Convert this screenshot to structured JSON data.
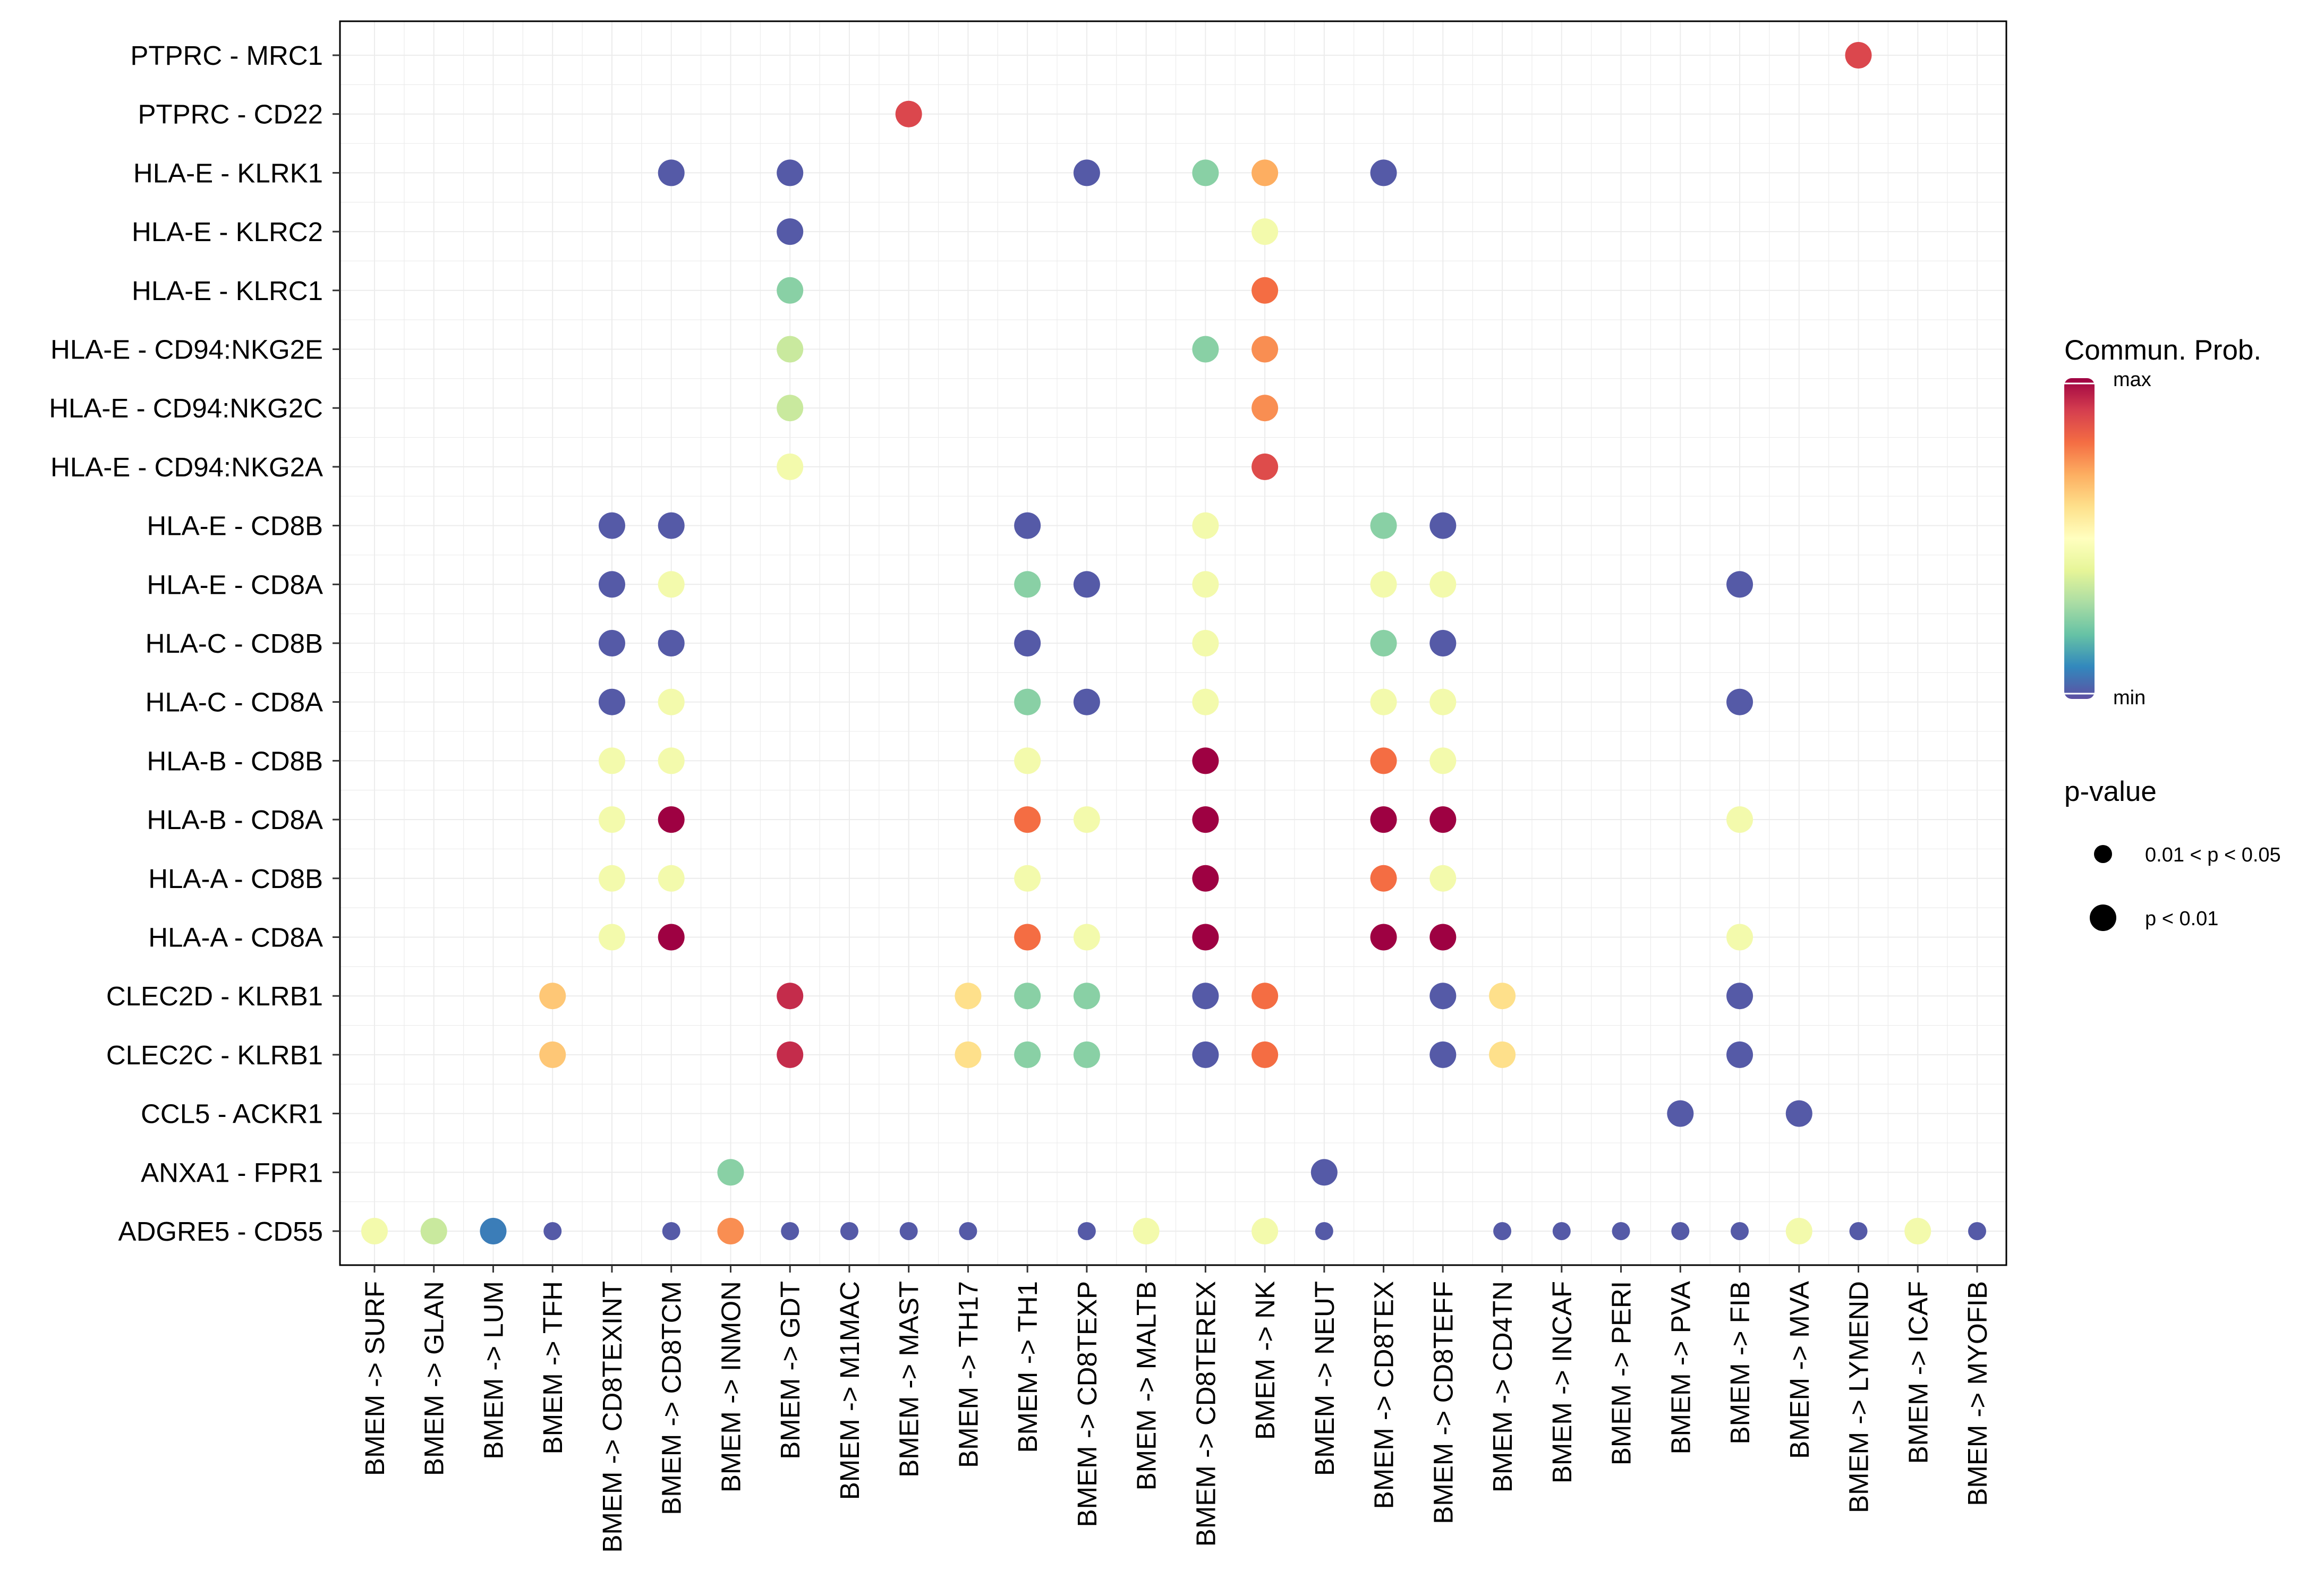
{
  "chart_data": {
    "type": "dot",
    "title": "",
    "xlabel": "",
    "ylabel": "",
    "x_categories": [
      "BMEM -> SURF",
      "BMEM -> GLAN",
      "BMEM -> LUM",
      "BMEM -> TFH",
      "BMEM -> CD8TEXINT",
      "BMEM -> CD8TCM",
      "BMEM -> INMON",
      "BMEM -> GDT",
      "BMEM -> M1MAC",
      "BMEM -> MAST",
      "BMEM -> TH17",
      "BMEM -> TH1",
      "BMEM -> CD8TEXP",
      "BMEM -> MALTB",
      "BMEM -> CD8TEREX",
      "BMEM -> NK",
      "BMEM -> NEUT",
      "BMEM -> CD8TEX",
      "BMEM -> CD8TEFF",
      "BMEM -> CD4TN",
      "BMEM -> INCAF",
      "BMEM -> PERI",
      "BMEM -> PVA",
      "BMEM -> FIB",
      "BMEM -> MVA",
      "BMEM -> LYMEND",
      "BMEM -> ICAF",
      "BMEM -> MYOFIB"
    ],
    "y_categories": [
      "PTPRC - MRC1",
      "PTPRC - CD22",
      "HLA-E - KLRK1",
      "HLA-E - KLRC2",
      "HLA-E - KLRC1",
      "HLA-E - CD94:NKG2E",
      "HLA-E - CD94:NKG2C",
      "HLA-E - CD94:NKG2A",
      "HLA-E - CD8B",
      "HLA-E - CD8A",
      "HLA-C - CD8B",
      "HLA-C - CD8A",
      "HLA-B - CD8B",
      "HLA-B - CD8A",
      "HLA-A - CD8B",
      "HLA-A - CD8A",
      "CLEC2D - KLRB1",
      "CLEC2C - KLRB1",
      "CCL5 - ACKR1",
      "ANXA1 - FPR1",
      "ADGRE5 - CD55"
    ],
    "color_scale": [
      "#5E4FA2",
      "#3288BD",
      "#66C2A5",
      "#ABDDA4",
      "#E6F598",
      "#FFFFBF",
      "#FEE08B",
      "#FDAE61",
      "#F46D43",
      "#D53E4F",
      "#9E0142"
    ],
    "colorbar": {
      "title": "Commun. Prob.",
      "max_label": "max",
      "min_label": "min"
    },
    "size_legend": {
      "title": "p-value",
      "entries": [
        {
          "label": "0.01 < p < 0.05",
          "p_class": 2
        },
        {
          "label": "p < 0.01",
          "p_class": 3
        }
      ]
    },
    "points_note": "each point: [x index, y index, relative prob 0-1, p-value class (2 = 0.01<p<0.05, 3 = p<0.01)]",
    "points": [
      [
        25,
        0,
        0.88,
        3
      ],
      [
        9,
        1,
        0.88,
        3
      ],
      [
        5,
        2,
        0.02,
        3
      ],
      [
        7,
        2,
        0.02,
        3
      ],
      [
        12,
        2,
        0.02,
        3
      ],
      [
        14,
        2,
        0.25,
        3
      ],
      [
        15,
        2,
        0.7,
        3
      ],
      [
        17,
        2,
        0.02,
        3
      ],
      [
        7,
        3,
        0.02,
        3
      ],
      [
        15,
        3,
        0.45,
        3
      ],
      [
        7,
        4,
        0.25,
        3
      ],
      [
        15,
        4,
        0.8,
        3
      ],
      [
        7,
        5,
        0.35,
        3
      ],
      [
        14,
        5,
        0.25,
        3
      ],
      [
        15,
        5,
        0.75,
        3
      ],
      [
        7,
        6,
        0.35,
        3
      ],
      [
        15,
        6,
        0.75,
        3
      ],
      [
        7,
        7,
        0.45,
        3
      ],
      [
        15,
        7,
        0.87,
        3
      ],
      [
        4,
        8,
        0.02,
        3
      ],
      [
        5,
        8,
        0.02,
        3
      ],
      [
        11,
        8,
        0.02,
        3
      ],
      [
        14,
        8,
        0.45,
        3
      ],
      [
        17,
        8,
        0.25,
        3
      ],
      [
        18,
        8,
        0.02,
        3
      ],
      [
        4,
        9,
        0.02,
        3
      ],
      [
        5,
        9,
        0.45,
        3
      ],
      [
        11,
        9,
        0.25,
        3
      ],
      [
        12,
        9,
        0.02,
        3
      ],
      [
        14,
        9,
        0.45,
        3
      ],
      [
        17,
        9,
        0.45,
        3
      ],
      [
        18,
        9,
        0.45,
        3
      ],
      [
        23,
        9,
        0.02,
        3
      ],
      [
        4,
        10,
        0.02,
        3
      ],
      [
        5,
        10,
        0.02,
        3
      ],
      [
        11,
        10,
        0.02,
        3
      ],
      [
        14,
        10,
        0.45,
        3
      ],
      [
        17,
        10,
        0.25,
        3
      ],
      [
        18,
        10,
        0.02,
        3
      ],
      [
        4,
        11,
        0.02,
        3
      ],
      [
        5,
        11,
        0.45,
        3
      ],
      [
        11,
        11,
        0.25,
        3
      ],
      [
        12,
        11,
        0.02,
        3
      ],
      [
        14,
        11,
        0.45,
        3
      ],
      [
        17,
        11,
        0.45,
        3
      ],
      [
        18,
        11,
        0.45,
        3
      ],
      [
        23,
        11,
        0.02,
        3
      ],
      [
        4,
        12,
        0.45,
        3
      ],
      [
        5,
        12,
        0.45,
        3
      ],
      [
        11,
        12,
        0.45,
        3
      ],
      [
        14,
        12,
        1.0,
        3
      ],
      [
        17,
        12,
        0.8,
        3
      ],
      [
        18,
        12,
        0.45,
        3
      ],
      [
        4,
        13,
        0.45,
        3
      ],
      [
        5,
        13,
        1.0,
        3
      ],
      [
        11,
        13,
        0.8,
        3
      ],
      [
        12,
        13,
        0.45,
        3
      ],
      [
        14,
        13,
        1.0,
        3
      ],
      [
        17,
        13,
        1.0,
        3
      ],
      [
        18,
        13,
        1.0,
        3
      ],
      [
        23,
        13,
        0.45,
        3
      ],
      [
        4,
        14,
        0.45,
        3
      ],
      [
        5,
        14,
        0.45,
        3
      ],
      [
        11,
        14,
        0.45,
        3
      ],
      [
        14,
        14,
        1.0,
        3
      ],
      [
        17,
        14,
        0.8,
        3
      ],
      [
        18,
        14,
        0.45,
        3
      ],
      [
        4,
        15,
        0.45,
        3
      ],
      [
        5,
        15,
        1.0,
        3
      ],
      [
        11,
        15,
        0.8,
        3
      ],
      [
        12,
        15,
        0.45,
        3
      ],
      [
        14,
        15,
        1.0,
        3
      ],
      [
        17,
        15,
        1.0,
        3
      ],
      [
        18,
        15,
        1.0,
        3
      ],
      [
        23,
        15,
        0.45,
        3
      ],
      [
        3,
        16,
        0.65,
        3
      ],
      [
        7,
        16,
        0.93,
        3
      ],
      [
        10,
        16,
        0.6,
        3
      ],
      [
        11,
        16,
        0.25,
        3
      ],
      [
        12,
        16,
        0.25,
        3
      ],
      [
        14,
        16,
        0.02,
        3
      ],
      [
        15,
        16,
        0.8,
        3
      ],
      [
        18,
        16,
        0.02,
        3
      ],
      [
        19,
        16,
        0.6,
        3
      ],
      [
        23,
        16,
        0.02,
        3
      ],
      [
        3,
        17,
        0.65,
        3
      ],
      [
        7,
        17,
        0.93,
        3
      ],
      [
        10,
        17,
        0.6,
        3
      ],
      [
        11,
        17,
        0.25,
        3
      ],
      [
        12,
        17,
        0.25,
        3
      ],
      [
        14,
        17,
        0.02,
        3
      ],
      [
        15,
        17,
        0.8,
        3
      ],
      [
        18,
        17,
        0.02,
        3
      ],
      [
        19,
        17,
        0.6,
        3
      ],
      [
        23,
        17,
        0.02,
        3
      ],
      [
        22,
        18,
        0.02,
        3
      ],
      [
        24,
        18,
        0.02,
        3
      ],
      [
        6,
        19,
        0.25,
        3
      ],
      [
        16,
        19,
        0.02,
        3
      ],
      [
        0,
        20,
        0.45,
        3
      ],
      [
        1,
        20,
        0.35,
        3
      ],
      [
        2,
        20,
        0.08,
        3
      ],
      [
        3,
        20,
        0.02,
        2
      ],
      [
        5,
        20,
        0.02,
        2
      ],
      [
        6,
        20,
        0.75,
        3
      ],
      [
        7,
        20,
        0.02,
        2
      ],
      [
        8,
        20,
        0.02,
        2
      ],
      [
        9,
        20,
        0.02,
        2
      ],
      [
        10,
        20,
        0.02,
        2
      ],
      [
        12,
        20,
        0.02,
        2
      ],
      [
        13,
        20,
        0.45,
        3
      ],
      [
        15,
        20,
        0.45,
        3
      ],
      [
        16,
        20,
        0.02,
        2
      ],
      [
        19,
        20,
        0.02,
        2
      ],
      [
        20,
        20,
        0.02,
        2
      ],
      [
        21,
        20,
        0.02,
        2
      ],
      [
        22,
        20,
        0.02,
        2
      ],
      [
        23,
        20,
        0.02,
        2
      ],
      [
        24,
        20,
        0.45,
        3
      ],
      [
        25,
        20,
        0.02,
        2
      ],
      [
        26,
        20,
        0.45,
        3
      ],
      [
        27,
        20,
        0.02,
        2
      ]
    ]
  }
}
